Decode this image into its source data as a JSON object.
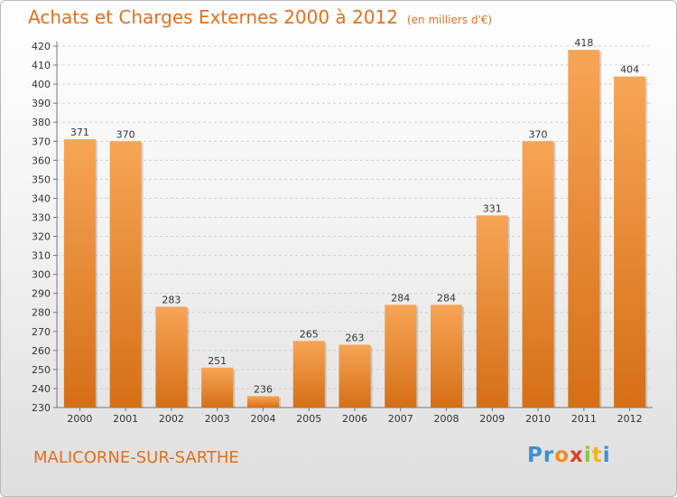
{
  "header": {
    "title": "Achats et Charges Externes 2000 à 2012",
    "subtitle": "(en milliers d'€)"
  },
  "footer": {
    "place": "MALICORNE-SUR-SARTHE",
    "logo_parts": [
      "Pr",
      "o",
      "x",
      "i",
      "t",
      "i"
    ]
  },
  "colors": {
    "bar_light": "#f7a556",
    "bar_dark": "#d56f16",
    "title": "#e2701f"
  },
  "chart_data": {
    "type": "bar",
    "title": "Achats et Charges Externes 2000 à 2012",
    "subtitle": "(en milliers d'€)",
    "categories": [
      "2000",
      "2001",
      "2002",
      "2003",
      "2004",
      "2005",
      "2006",
      "2007",
      "2008",
      "2009",
      "2010",
      "2011",
      "2012"
    ],
    "values": [
      371,
      370,
      283,
      251,
      236,
      265,
      263,
      284,
      284,
      331,
      370,
      418,
      404
    ],
    "ylim": [
      230,
      420
    ],
    "yticks": [
      230,
      240,
      250,
      260,
      270,
      280,
      290,
      300,
      310,
      320,
      330,
      340,
      350,
      360,
      370,
      380,
      390,
      400,
      410,
      420
    ],
    "grid": true
  }
}
